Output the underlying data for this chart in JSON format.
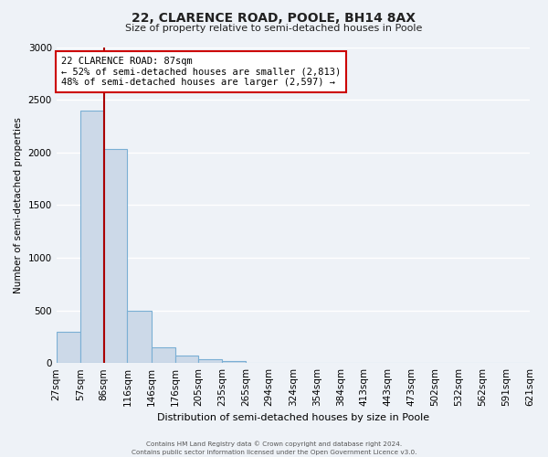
{
  "title_line1": "22, CLARENCE ROAD, POOLE, BH14 8AX",
  "title_line2": "Size of property relative to semi-detached houses in Poole",
  "xlabel": "Distribution of semi-detached houses by size in Poole",
  "ylabel": "Number of semi-detached properties",
  "bin_labels": [
    "27sqm",
    "57sqm",
    "86sqm",
    "116sqm",
    "146sqm",
    "176sqm",
    "205sqm",
    "235sqm",
    "265sqm",
    "294sqm",
    "324sqm",
    "354sqm",
    "384sqm",
    "413sqm",
    "443sqm",
    "473sqm",
    "502sqm",
    "532sqm",
    "562sqm",
    "591sqm",
    "621sqm"
  ],
  "bin_edges": [
    27,
    57,
    86,
    116,
    146,
    176,
    205,
    235,
    265,
    294,
    324,
    354,
    384,
    413,
    443,
    473,
    502,
    532,
    562,
    591,
    621
  ],
  "bar_heights": [
    300,
    2400,
    2030,
    500,
    150,
    75,
    35,
    20,
    5,
    2,
    1,
    0,
    0,
    0,
    0,
    0,
    0,
    0,
    0,
    0
  ],
  "bar_color": "#ccd9e8",
  "bar_edge_color": "#7aafd4",
  "property_value": 87,
  "property_line_color": "#aa0000",
  "ylim": [
    0,
    3000
  ],
  "yticks": [
    0,
    500,
    1000,
    1500,
    2000,
    2500,
    3000
  ],
  "annotation_title": "22 CLARENCE ROAD: 87sqm",
  "annotation_line1": "← 52% of semi-detached houses are smaller (2,813)",
  "annotation_line2": "48% of semi-detached houses are larger (2,597) →",
  "annotation_box_facecolor": "#ffffff",
  "annotation_box_edgecolor": "#cc0000",
  "footer_line1": "Contains HM Land Registry data © Crown copyright and database right 2024.",
  "footer_line2": "Contains public sector information licensed under the Open Government Licence v3.0.",
  "background_color": "#eef2f7",
  "grid_color": "#ffffff",
  "fig_width": 6.0,
  "fig_height": 5.0,
  "dpi": 100
}
